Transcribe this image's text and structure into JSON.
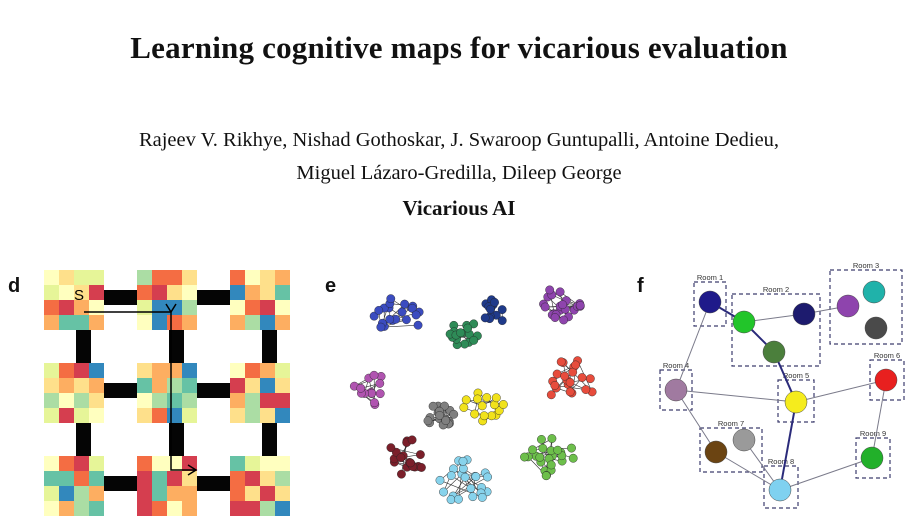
{
  "paper": {
    "title": "Learning cognitive maps for vicarious evaluation",
    "authors_line1": "Rajeev V. Rikhye, Nishad Gothoskar, J. Swaroop Guntupalli, Antoine Dedieu,",
    "authors_line2": "Miguel Lázaro-Gredilla, Dileep George",
    "affiliation": "Vicarious AI"
  },
  "panels": {
    "d": {
      "label": "d",
      "start_marker": "S",
      "room_grid": "3x3",
      "palette": [
        "#d53e4f",
        "#f46d43",
        "#fdae61",
        "#fee08b",
        "#ffffbf",
        "#e6f598",
        "#abdda4",
        "#66c2a5",
        "#3288bd"
      ]
    },
    "e": {
      "label": "e",
      "cluster_colors": [
        "#3b4cc0",
        "#2e8b57",
        "#1f3a8a",
        "#8e44ad",
        "#b054b0",
        "#e74c3c",
        "#f1e21b",
        "#7b1f2a",
        "#7f7f7f",
        "#87d3ec",
        "#6dbf4b"
      ]
    },
    "f": {
      "label": "f",
      "rooms": [
        {
          "label": "Room 1"
        },
        {
          "label": "Room 2"
        },
        {
          "label": "Room 3"
        },
        {
          "label": "Room 4"
        },
        {
          "label": "Room 5"
        },
        {
          "label": "Room 6"
        },
        {
          "label": "Room 7"
        },
        {
          "label": "Room 8"
        },
        {
          "label": "Room 9"
        }
      ],
      "node_colors": {
        "room1": [
          "#1f1a8a"
        ],
        "room2": [
          "#22c52a",
          "#1d1b6e",
          "#4b7f3c"
        ],
        "room3": [
          "#8e44ad",
          "#20b2aa",
          "#4a4a4a"
        ],
        "room4": [
          "#a07aa0"
        ],
        "room5": [
          "#f5ec1d"
        ],
        "room6": [
          "#e8201f"
        ],
        "room7": [
          "#6b4412",
          "#9a9a9a"
        ],
        "room8": [
          "#7fd1f0"
        ],
        "room9": [
          "#22b02a"
        ]
      }
    }
  }
}
